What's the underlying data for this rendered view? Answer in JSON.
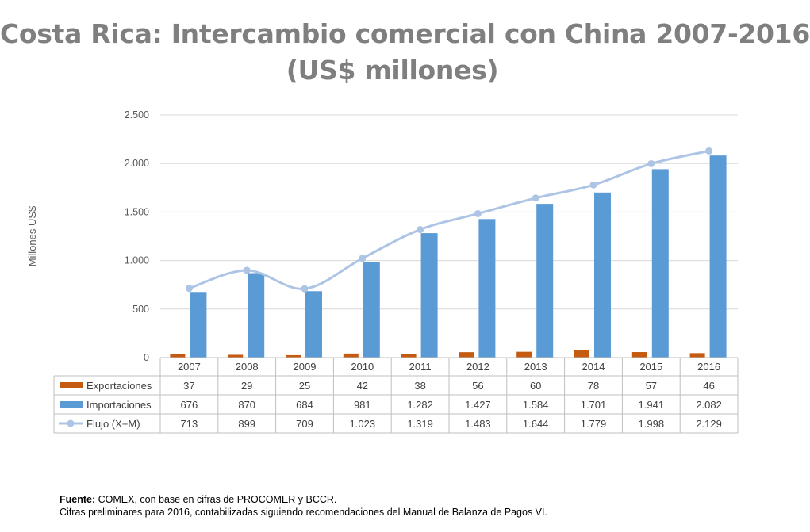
{
  "title_line1": "Costa Rica: Intercambio comercial con China 2007-2016",
  "title_line2": "(US$ millones)",
  "footer": {
    "source_label": "Fuente:",
    "source_text": " COMEX, con base en cifras de PROCOMER y BCCR.",
    "note": "Cifras preliminares para 2016, contabilizadas siguiendo recomendaciones del Manual de Balanza de Pagos VI."
  },
  "colors": {
    "exportaciones": "#c55a11",
    "importaciones": "#5b9bd5",
    "flujo": "#aec4e5",
    "grid": "#d9d9d9",
    "text": "#595959"
  },
  "chart_data": {
    "type": "bar",
    "title": "Costa Rica: Intercambio comercial con China 2007-2016 (US$ millones)",
    "ylabel": "Millones US$",
    "ylim": [
      0,
      2500
    ],
    "yticks": [
      0,
      500,
      1000,
      1500,
      2000,
      2500
    ],
    "ytick_labels": [
      "0",
      "500",
      "1.000",
      "1.500",
      "2.000",
      "2.500"
    ],
    "grid": true,
    "legend": "data-table",
    "categories": [
      "2007",
      "2008",
      "2009",
      "2010",
      "2011",
      "2012",
      "2013",
      "2014",
      "2015",
      "2016"
    ],
    "series": [
      {
        "name": "Exportaciones",
        "kind": "bar",
        "values": [
          37,
          29,
          25,
          42,
          38,
          56,
          60,
          78,
          57,
          46
        ],
        "labels": [
          "37",
          "29",
          "25",
          "42",
          "38",
          "56",
          "60",
          "78",
          "57",
          "46"
        ]
      },
      {
        "name": "Importaciones",
        "kind": "bar",
        "values": [
          676,
          870,
          684,
          981,
          1282,
          1427,
          1584,
          1701,
          1941,
          2082
        ],
        "labels": [
          "676",
          "870",
          "684",
          "981",
          "1.282",
          "1.427",
          "1.584",
          "1.701",
          "1.941",
          "2.082"
        ]
      },
      {
        "name": "Flujo (X+M)",
        "kind": "line",
        "values": [
          713,
          899,
          709,
          1023,
          1319,
          1483,
          1644,
          1779,
          1998,
          2129
        ],
        "labels": [
          "713",
          "899",
          "709",
          "1.023",
          "1.319",
          "1.483",
          "1.644",
          "1.779",
          "1.998",
          "2.129"
        ]
      }
    ]
  }
}
